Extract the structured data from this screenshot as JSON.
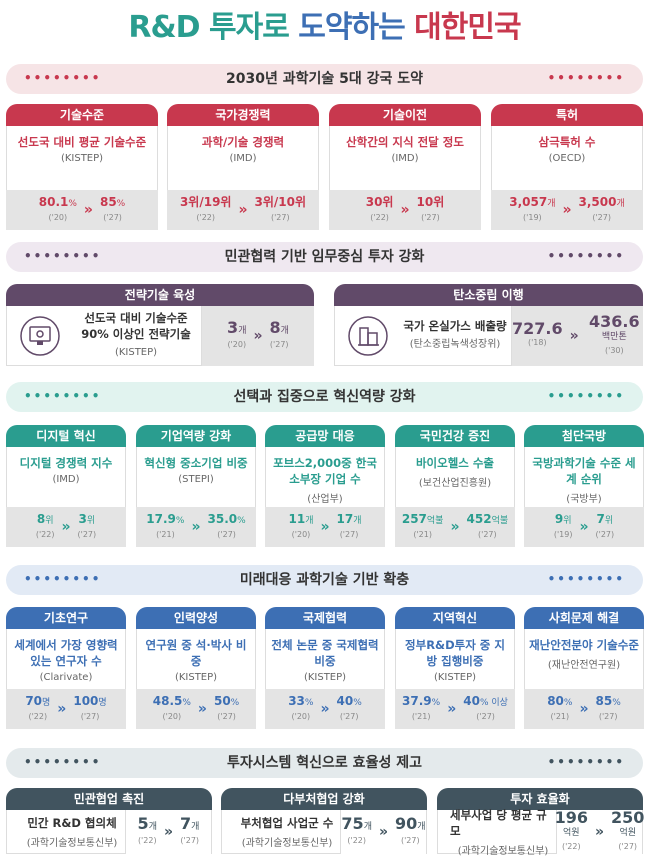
{
  "title": {
    "part1": "R&D 투자로",
    "part2": "도약하는",
    "part3": "대한민국"
  },
  "colors": {
    "red": "#c8384e",
    "purple": "#614a69",
    "green": "#2a9d8f",
    "blue": "#3d6fb4",
    "slate": "#41545f"
  },
  "arrow": "»",
  "dots": "••••••••",
  "s1": {
    "heading": "2030년 과학기술 5대 강국 도약",
    "cards": [
      {
        "header": "기술수준",
        "title": "선도국 대비 평균 기술수준",
        "source": "(KISTEP)",
        "from": {
          "num": "80.1",
          "unit": "%",
          "yr": "('20)"
        },
        "to": {
          "num": "85",
          "unit": "%",
          "yr": "('27)"
        }
      },
      {
        "header": "국가경쟁력",
        "title": "과학/기술 경쟁력",
        "source": "(IMD)",
        "from": {
          "num": "3위/19위",
          "unit": "",
          "yr": "('22)"
        },
        "to": {
          "num": "3위/10위",
          "unit": "",
          "yr": "('27)"
        }
      },
      {
        "header": "기술이전",
        "title": "산학간의 지식 전달 정도",
        "source": "(IMD)",
        "from": {
          "num": "30위",
          "unit": "",
          "yr": "('22)"
        },
        "to": {
          "num": "10위",
          "unit": "",
          "yr": "('27)"
        }
      },
      {
        "header": "특허",
        "title": "삼극특허 수",
        "source": "(OECD)",
        "from": {
          "num": "3,057",
          "unit": "개",
          "yr": "('19)"
        },
        "to": {
          "num": "3,500",
          "unit": "개",
          "yr": "('27)"
        }
      }
    ]
  },
  "s2": {
    "heading": "민관협력 기반 임무중심 투자 강화",
    "cards": [
      {
        "header": "전략기술 육성",
        "title": "선도국 대비 기술수준 90% 이상인 전략기술",
        "source": "(KISTEP)",
        "from": {
          "num": "3",
          "unit": "개",
          "yr": "('20)"
        },
        "to": {
          "num": "8",
          "unit": "개",
          "yr": "('27)"
        }
      },
      {
        "header": "탄소중립 이행",
        "title": "국가 온실가스 배출량",
        "source": "(탄소중립녹색성장위)",
        "from": {
          "num": "727.6",
          "unit": "",
          "yr": "('18)"
        },
        "to": {
          "num": "436.6",
          "unit": "백만톤",
          "yr": "('30)"
        }
      }
    ]
  },
  "s3": {
    "heading": "선택과 집중으로 혁신역량 강화",
    "cards": [
      {
        "header": "디지털 혁신",
        "title": "디지털 경쟁력 지수",
        "source": "(IMD)",
        "from": {
          "num": "8",
          "unit": "위",
          "yr": "('22)"
        },
        "to": {
          "num": "3",
          "unit": "위",
          "yr": "('27)"
        }
      },
      {
        "header": "기업역량 강화",
        "title": "혁신형 중소기업 비중",
        "source": "(STEPI)",
        "from": {
          "num": "17.9",
          "unit": "%",
          "yr": "('21)"
        },
        "to": {
          "num": "35.0",
          "unit": "%",
          "yr": "('27)"
        }
      },
      {
        "header": "공급망 대응",
        "title": "포브스2,000중 한국 소부장 기업 수",
        "source": "(산업부)",
        "from": {
          "num": "11",
          "unit": "개",
          "yr": "('20)"
        },
        "to": {
          "num": "17",
          "unit": "개",
          "yr": "('27)"
        }
      },
      {
        "header": "국민건강 증진",
        "title": "바이오헬스 수출",
        "source": "(보건산업진흥원)",
        "from": {
          "num": "257",
          "unit": "억불",
          "yr": "('21)"
        },
        "to": {
          "num": "452",
          "unit": "억불",
          "yr": "('27)"
        }
      },
      {
        "header": "첨단국방",
        "title": "국방과학기술 수준 세계 순위",
        "source": "(국방부)",
        "from": {
          "num": "9",
          "unit": "위",
          "yr": "('19)"
        },
        "to": {
          "num": "7",
          "unit": "위",
          "yr": "('27)"
        }
      }
    ]
  },
  "s4": {
    "heading": "미래대응 과학기술 기반 확충",
    "cards": [
      {
        "header": "기초연구",
        "title": "세계에서 가장 영향력 있는 연구자 수",
        "source": "(Clarivate)",
        "from": {
          "num": "70",
          "unit": "명",
          "yr": "('22)"
        },
        "to": {
          "num": "100",
          "unit": "명",
          "yr": "('27)"
        }
      },
      {
        "header": "인력양성",
        "title": "연구원 중 석·박사 비중",
        "source": "(KISTEP)",
        "from": {
          "num": "48.5",
          "unit": "%",
          "yr": "('20)"
        },
        "to": {
          "num": "50",
          "unit": "%",
          "yr": "('27)"
        }
      },
      {
        "header": "국제협력",
        "title": "전체 논문 중 국제협력 비중",
        "source": "(KISTEP)",
        "from": {
          "num": "33",
          "unit": "%",
          "yr": "('20)"
        },
        "to": {
          "num": "40",
          "unit": "%",
          "yr": "('27)"
        }
      },
      {
        "header": "지역혁신",
        "title": "정부R&D투자 중 지방 집행비중",
        "source": "(KISTEP)",
        "from": {
          "num": "37.9",
          "unit": "%",
          "yr": "('21)"
        },
        "to": {
          "num": "40",
          "unit": "% 이상",
          "yr": "('27)"
        }
      },
      {
        "header": "사회문제 해결",
        "title": "재난안전분야 기술수준",
        "source": "(재난안전연구원)",
        "from": {
          "num": "80",
          "unit": "%",
          "yr": "('21)"
        },
        "to": {
          "num": "85",
          "unit": "%",
          "yr": "('27)"
        }
      }
    ]
  },
  "s5": {
    "heading": "투자시스템 혁신으로 효율성 제고",
    "cards": [
      {
        "header": "민관협업 촉진",
        "title": "민간 R&D 협의체",
        "source": "(과학기술정보통신부)",
        "from": {
          "num": "5",
          "unit": "개",
          "yr": "('22)"
        },
        "to": {
          "num": "7",
          "unit": "개",
          "yr": "('27)"
        }
      },
      {
        "header": "다부처협업 강화",
        "title": "부처협업 사업군 수",
        "source": "(과학기술정보통신부)",
        "from": {
          "num": "75",
          "unit": "개",
          "yr": "('22)"
        },
        "to": {
          "num": "90",
          "unit": "개",
          "yr": "('27)"
        }
      },
      {
        "header": "투자 효율화",
        "title": "세부사업 당 평균 규모",
        "source": "(과학기술정보통신부)",
        "from": {
          "num": "196",
          "unit": "억원",
          "yr": "('22)"
        },
        "to": {
          "num": "250",
          "unit": "억원",
          "yr": "('27)"
        }
      }
    ]
  }
}
